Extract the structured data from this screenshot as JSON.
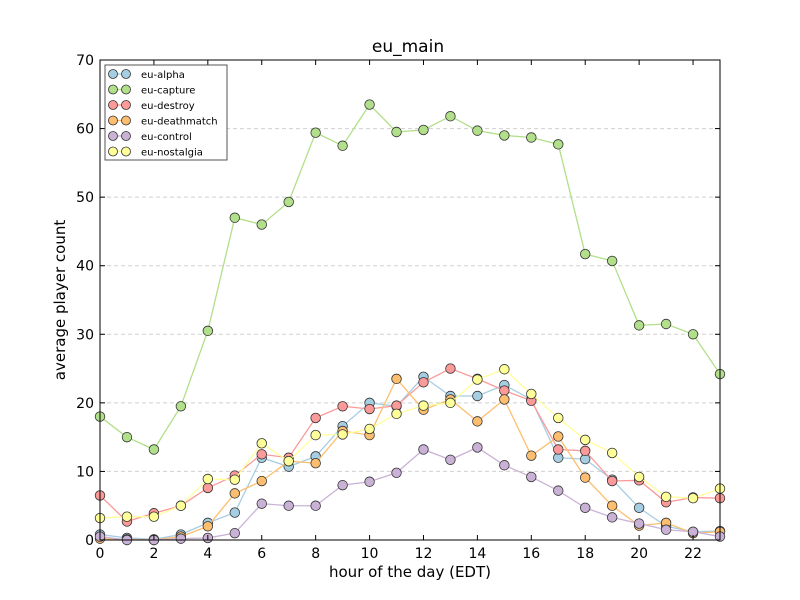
{
  "chart_data": {
    "type": "line",
    "title": "eu_main",
    "xlabel": "hour of the day (EDT)",
    "ylabel": "average player count",
    "xlim": [
      0,
      23
    ],
    "ylim": [
      0,
      70
    ],
    "x": [
      0,
      1,
      2,
      3,
      4,
      5,
      6,
      7,
      8,
      9,
      10,
      11,
      12,
      13,
      14,
      15,
      16,
      17,
      18,
      19,
      20,
      21,
      22,
      23
    ],
    "x_ticks": [
      0,
      2,
      4,
      6,
      8,
      10,
      12,
      14,
      16,
      18,
      20,
      22
    ],
    "x_tick_labels": [
      "0",
      "2",
      "4",
      "6",
      "8",
      "10",
      "12",
      "14",
      "16",
      "18",
      "20",
      "22"
    ],
    "y_ticks": [
      0,
      10,
      20,
      30,
      40,
      50,
      60,
      70
    ],
    "y_tick_labels": [
      "0",
      "10",
      "20",
      "30",
      "40",
      "50",
      "60",
      "70"
    ],
    "grid": "horizontal dashed",
    "legend_position": "top-left",
    "series": [
      {
        "name": "eu-alpha",
        "color": "#a6cee3",
        "values": [
          0.8,
          0.3,
          0.1,
          0.8,
          2.5,
          4.0,
          12.0,
          10.7,
          12.2,
          16.6,
          20.0,
          19.5,
          23.8,
          21.0,
          21.0,
          22.6,
          20.5,
          12.0,
          11.8,
          8.8,
          4.7,
          2.0,
          1.2,
          1.3
        ]
      },
      {
        "name": "eu-capture",
        "color": "#b2df8a",
        "values": [
          18.0,
          15.0,
          13.2,
          19.5,
          30.5,
          47.0,
          46.0,
          49.3,
          59.4,
          57.5,
          63.5,
          59.5,
          59.8,
          61.8,
          59.7,
          59.0,
          58.7,
          57.7,
          41.7,
          40.7,
          31.3,
          31.5,
          30.0,
          24.2
        ]
      },
      {
        "name": "eu-destroy",
        "color": "#fb9a99",
        "values": [
          6.5,
          2.7,
          3.9,
          5.0,
          7.6,
          9.4,
          12.5,
          12.0,
          17.8,
          19.5,
          19.1,
          19.6,
          23.0,
          25.0,
          23.5,
          21.8,
          20.3,
          13.2,
          13.0,
          8.6,
          8.7,
          5.5,
          6.2,
          6.1
        ]
      },
      {
        "name": "eu-deathmatch",
        "color": "#fdbf6f",
        "values": [
          0.2,
          0.1,
          0.0,
          0.5,
          2.0,
          6.8,
          8.6,
          11.5,
          11.2,
          15.9,
          15.3,
          23.5,
          19.0,
          20.5,
          17.3,
          20.5,
          12.3,
          15.1,
          9.1,
          5.0,
          2.1,
          2.5,
          1.0,
          1.2
        ]
      },
      {
        "name": "eu-control",
        "color": "#cab2d6",
        "values": [
          0.5,
          0.0,
          0.0,
          0.2,
          0.3,
          1.0,
          5.3,
          5.0,
          5.0,
          8.0,
          8.5,
          9.8,
          13.2,
          11.7,
          13.5,
          10.9,
          9.2,
          7.2,
          4.7,
          3.3,
          2.4,
          1.5,
          1.2,
          0.5
        ]
      },
      {
        "name": "eu-nostalgia",
        "color": "#ffff99",
        "values": [
          3.2,
          3.4,
          3.4,
          5.0,
          8.9,
          8.8,
          14.1,
          11.5,
          15.3,
          15.4,
          16.2,
          18.4,
          19.6,
          20.0,
          23.4,
          24.9,
          21.3,
          17.8,
          14.6,
          12.7,
          9.2,
          6.3,
          6.1,
          7.5
        ]
      }
    ]
  }
}
